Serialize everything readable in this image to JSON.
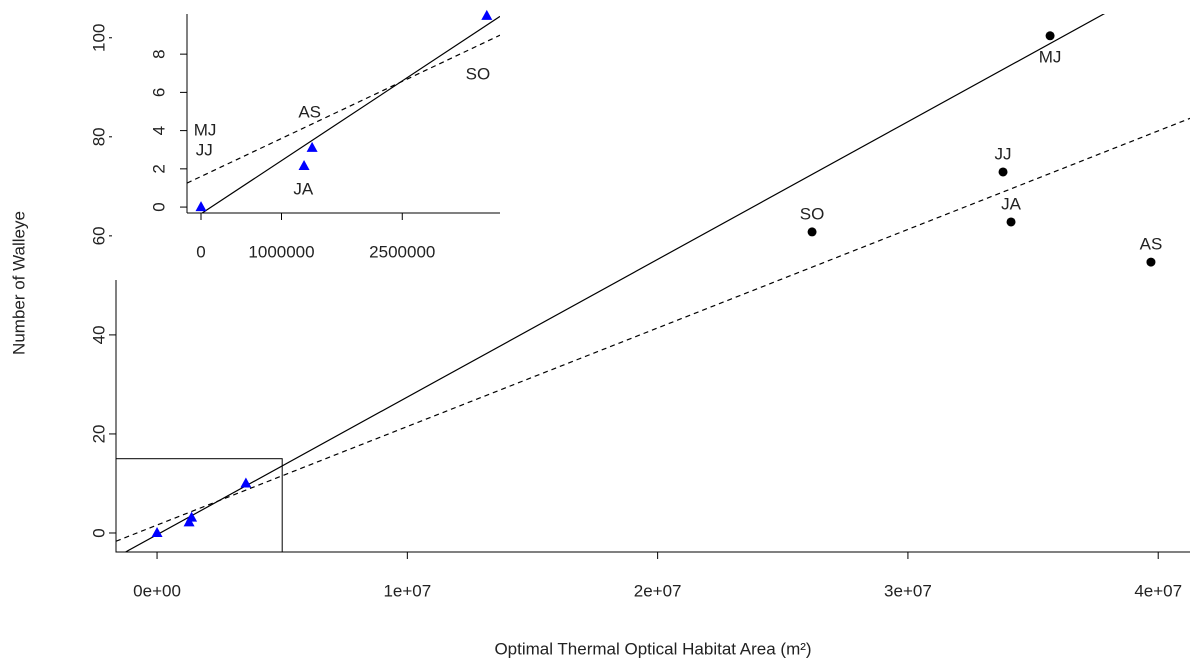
{
  "chart_data": [
    {
      "type": "scatter",
      "xlabel": "Optimal Thermal Optical Habitat Area (m²)",
      "ylabel": "Number of Walleye",
      "xlim": [
        -1640000,
        41270000
      ],
      "ylim": [
        -3.84,
        104.8
      ],
      "xticks": [
        {
          "value": 0,
          "label": "0e+00"
        },
        {
          "value": 10000000,
          "label": "1e+07"
        },
        {
          "value": 20000000,
          "label": "2e+07"
        },
        {
          "value": 30000000,
          "label": "3e+07"
        },
        {
          "value": 40000000,
          "label": "4e+07"
        }
      ],
      "yticks": [
        0,
        20,
        40,
        60,
        80,
        100
      ],
      "series": [
        {
          "marker": "circle",
          "color": "#000000",
          "labels": [
            "MJ",
            "JJ",
            "JA",
            "SO",
            "AS"
          ],
          "x": [
            35680000,
            33800000,
            34120000,
            26170000,
            39710000
          ],
          "values": [
            100.4,
            72.9,
            62.8,
            60.8,
            54.7
          ]
        },
        {
          "marker": "triangle",
          "color": "#0000ff",
          "x": [
            0,
            1280000,
            1380000,
            3550000
          ],
          "values": [
            0,
            2.15,
            3.1,
            10
          ]
        }
      ],
      "lines": [
        {
          "style": "solid",
          "intercept": -0.35,
          "slope": 2.78e-06
        },
        {
          "style": "dashed",
          "intercept": 1.6,
          "slope": 1.99e-06
        }
      ],
      "zoom_box": {
        "x": 5000000,
        "y": 15
      }
    },
    {
      "type": "scatter",
      "xlim": [
        -174000,
        3714000
      ],
      "ylim": [
        -0.31,
        10.1
      ],
      "xticks": [
        0,
        1000000,
        2500000
      ],
      "yticks": [
        0,
        2,
        4,
        6,
        8
      ],
      "series": [
        {
          "marker": "triangle",
          "color": "#0000ff",
          "x": [
            0,
            1280000,
            1380000,
            3550000
          ],
          "values": [
            0,
            2.15,
            3.1,
            10
          ]
        }
      ],
      "lines": [
        {
          "style": "solid",
          "intercept": -0.35,
          "slope": 2.78e-06
        },
        {
          "style": "dashed",
          "intercept": 1.6,
          "slope": 1.99e-06
        }
      ],
      "annotations": [
        {
          "text": "MJ",
          "x": 50000,
          "y": 3.98
        },
        {
          "text": "JJ",
          "x": 40000,
          "y": 2.93
        },
        {
          "text": "AS",
          "x": 1350000,
          "y": 4.92
        },
        {
          "text": "JA",
          "x": 1270000,
          "y": 0.89
        },
        {
          "text": "SO",
          "x": 3440000,
          "y": 6.91
        }
      ]
    }
  ]
}
